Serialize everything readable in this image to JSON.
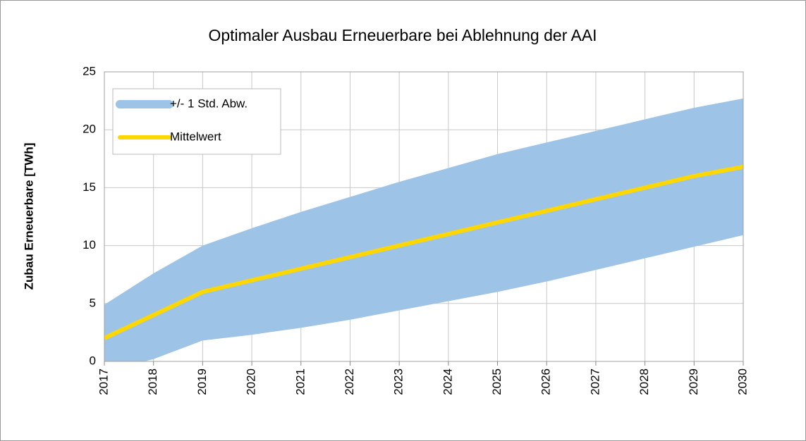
{
  "chart_data": {
    "type": "line",
    "title": "Optimaler Ausbau Erneuerbare bei Ablehnung der AAI",
    "y_label": "Zubau Erneuerbare [TWh]",
    "categories": [
      "2017",
      "2018",
      "2019",
      "2020",
      "2021",
      "2022",
      "2023",
      "2024",
      "2025",
      "2026",
      "2027",
      "2028",
      "2029",
      "2030"
    ],
    "series": [
      {
        "name": "+/- 1 Std. Abw.",
        "type": "band",
        "color": "#9dc3e6",
        "upper": [
          4.9,
          7.6,
          10.0,
          11.5,
          12.9,
          14.2,
          15.5,
          16.7,
          17.9,
          18.9,
          19.9,
          20.9,
          21.9,
          22.7
        ],
        "lower": [
          -0.9,
          0.2,
          1.8,
          2.3,
          2.9,
          3.6,
          4.4,
          5.2,
          6.0,
          6.9,
          7.9,
          8.9,
          9.9,
          10.9
        ]
      },
      {
        "name": "Mittelwert",
        "type": "line",
        "color": "#ffd700",
        "values": [
          2,
          4,
          6,
          7,
          8,
          9,
          10,
          11,
          12,
          13,
          14,
          15,
          16,
          16.8
        ]
      }
    ],
    "ylim": [
      0,
      25
    ],
    "yticks": [
      0,
      5,
      10,
      15,
      20,
      25
    ],
    "grid": true,
    "legend": "top-left"
  }
}
